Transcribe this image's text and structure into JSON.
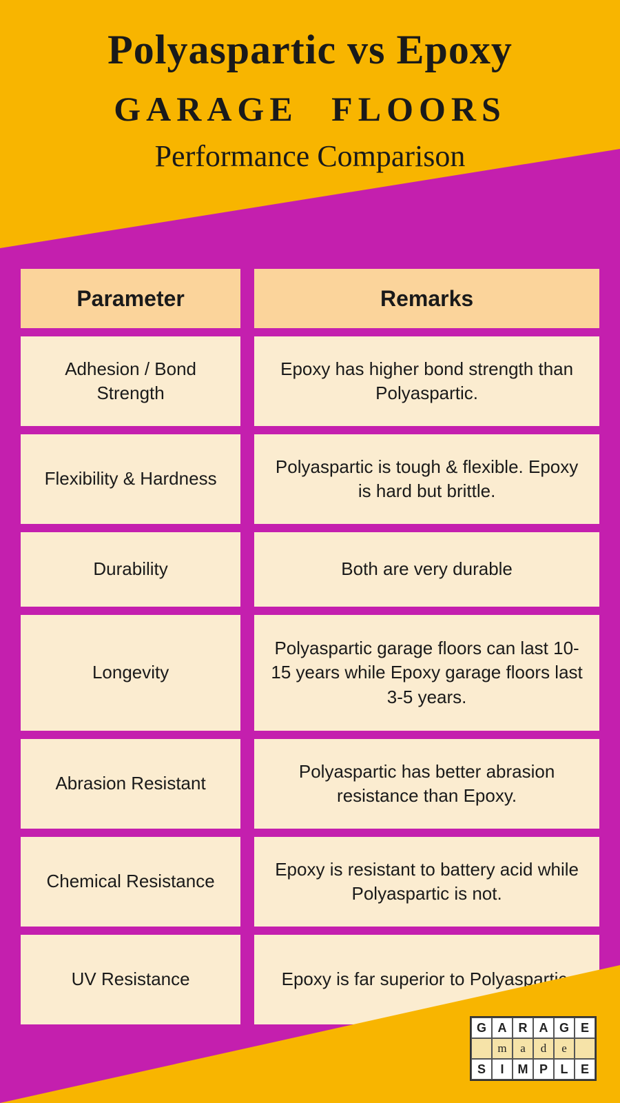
{
  "colors": {
    "accent_yellow": "#f8b500",
    "accent_magenta": "#c41fae",
    "cell_bg": "#fbecd0",
    "header_cell_bg": "#fbd49b",
    "text": "#1a1a1a"
  },
  "header": {
    "title": "Polyaspartic vs Epoxy",
    "subtitle1": "GARAGE FLOORS",
    "subtitle2": "Performance Comparison"
  },
  "table": {
    "columns": [
      "Parameter",
      "Remarks"
    ],
    "rows": [
      {
        "parameter": "Adhesion / Bond Strength",
        "remarks": "Epoxy has higher bond strength than Polyaspartic."
      },
      {
        "parameter": "Flexibility & Hardness",
        "remarks": "Polyaspartic is tough & flexible. Epoxy is hard but brittle."
      },
      {
        "parameter": "Durability",
        "remarks": "Both are very durable"
      },
      {
        "parameter": "Longevity",
        "remarks": "Polyaspartic garage floors can last 10-15 years while Epoxy garage floors last 3-5 years."
      },
      {
        "parameter": "Abrasion Resistant",
        "remarks": "Polyaspartic has better abrasion resistance than Epoxy."
      },
      {
        "parameter": "Chemical Resistance",
        "remarks": "Epoxy is resistant to battery acid while Polyaspartic is not."
      },
      {
        "parameter": "UV Resistance",
        "remarks": "Epoxy is far superior to Polyaspartic."
      }
    ]
  },
  "logo": {
    "row1": [
      "G",
      "A",
      "R",
      "A",
      "G",
      "E"
    ],
    "row2": [
      "",
      "m",
      "a",
      "d",
      "e",
      ""
    ],
    "row3": [
      "S",
      "I",
      "M",
      "P",
      "L",
      "E"
    ]
  }
}
